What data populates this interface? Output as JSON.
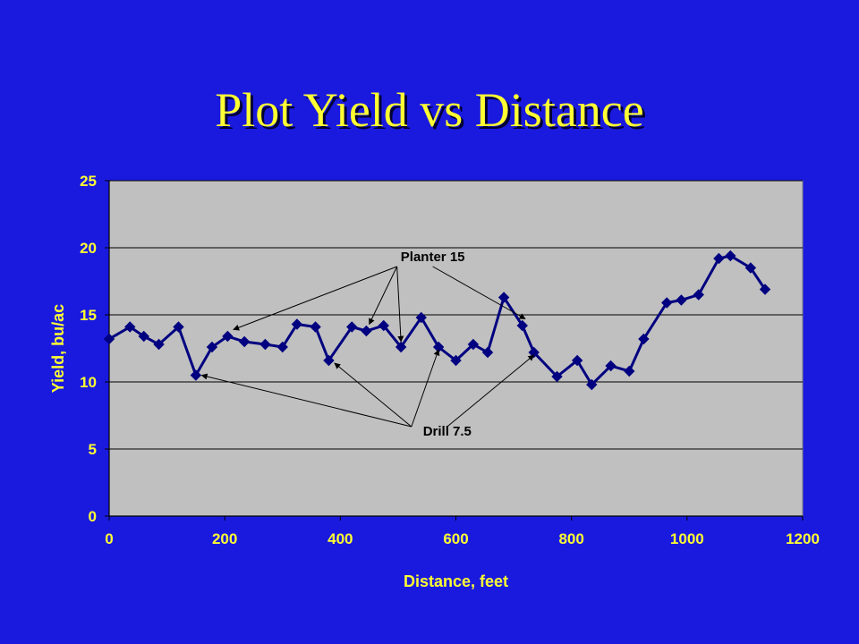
{
  "slide": {
    "title": "Plot Yield vs Distance"
  },
  "colors": {
    "background": "#1a1adf",
    "title": "#ffff33",
    "plot_area": "#c0c0c0",
    "series_line": "#000080",
    "gridline": "#000000",
    "axis_text": "#ffff33"
  },
  "chart_data": {
    "type": "line",
    "title": "",
    "xlabel": "Distance, feet",
    "ylabel": "Yield, bu/ac",
    "xlim": [
      0,
      1200
    ],
    "ylim": [
      0,
      25
    ],
    "xticks": [
      0,
      200,
      400,
      600,
      800,
      1000,
      1200
    ],
    "yticks": [
      0,
      5,
      10,
      15,
      20,
      25
    ],
    "grid": {
      "horizontal": true,
      "vertical": false
    },
    "marker": "diamond",
    "series": [
      {
        "name": "",
        "x": [
          0,
          36,
          60,
          86,
          120,
          150,
          178,
          205,
          234,
          270,
          300,
          325,
          357,
          380,
          420,
          445,
          475,
          505,
          540,
          570,
          600,
          630,
          655,
          683,
          715,
          735,
          775,
          810,
          835,
          868,
          900,
          925,
          965,
          990,
          1020,
          1055,
          1075,
          1110,
          1135
        ],
        "y": [
          13.2,
          14.1,
          13.4,
          12.8,
          14.1,
          10.5,
          12.6,
          13.4,
          13.0,
          12.8,
          12.6,
          14.3,
          14.1,
          11.6,
          14.1,
          13.8,
          14.2,
          12.6,
          14.8,
          12.6,
          11.6,
          12.8,
          12.2,
          16.3,
          14.2,
          12.2,
          10.4,
          11.6,
          9.8,
          11.2,
          10.8,
          13.2,
          15.9,
          16.1,
          16.5,
          19.2,
          19.4,
          18.5,
          16.9
        ]
      }
    ],
    "annotations": [
      {
        "text": "Planter 15",
        "label_at": [
          560,
          19.0
        ],
        "points_to": [
          [
            215,
            13.9
          ],
          [
            450,
            14.3
          ],
          [
            505,
            13.0
          ],
          [
            720,
            14.7
          ]
        ]
      },
      {
        "text": "Drill 7.5",
        "label_at": [
          585,
          6.0
        ],
        "points_to": [
          [
            160,
            10.5
          ],
          [
            390,
            11.4
          ],
          [
            570,
            12.4
          ],
          [
            735,
            12.0
          ]
        ]
      }
    ]
  }
}
